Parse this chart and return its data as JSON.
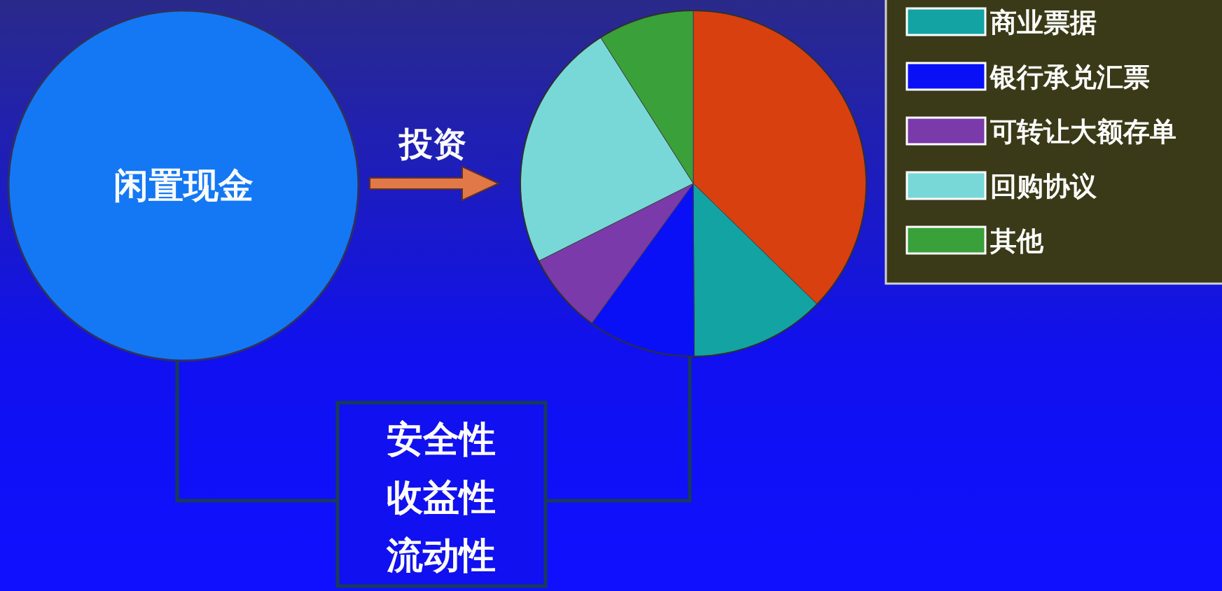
{
  "chart_data": {
    "type": "pie",
    "categories": [
      null,
      "商业票据",
      "银行承兑汇票",
      "可转让大额存单",
      "回购协议",
      "其他"
    ],
    "values": [
      37.3,
      12.6,
      10.1,
      7.6,
      23.4,
      9.0
    ],
    "colors": [
      "#d9400f",
      "#13a3a3",
      "#0a10f5",
      "#7a3aaa",
      "#78d8d8",
      "#3aa03a"
    ],
    "legend": "top right",
    "annotations": [
      "投资",
      "闲置现金",
      "安全性",
      "收益性",
      "流动性"
    ]
  }
}
